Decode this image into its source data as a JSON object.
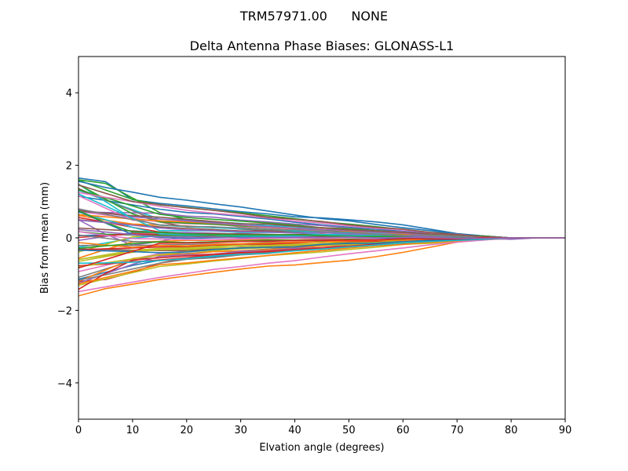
{
  "figure": {
    "suptitle": "TRM57971.00      NONE"
  },
  "chart_data": {
    "type": "line",
    "title": "Delta Antenna Phase Biases: GLONASS-L1",
    "xlabel": "Elvation angle (degrees)",
    "ylabel": "Bias from mean (mm)",
    "xlim": [
      0,
      90
    ],
    "ylim": [
      -5,
      5
    ],
    "xticks": [
      0,
      10,
      20,
      30,
      40,
      50,
      60,
      70,
      80,
      90
    ],
    "yticks": [
      -4,
      -2,
      0,
      2,
      4
    ],
    "xtick_labels": [
      "0",
      "10",
      "20",
      "30",
      "40",
      "50",
      "60",
      "70",
      "80",
      "90"
    ],
    "ytick_labels": [
      "−4",
      "−2",
      "0",
      "2",
      "4"
    ],
    "grid": false,
    "legend": "none",
    "x": [
      0,
      5,
      10,
      15,
      20,
      25,
      30,
      35,
      40,
      45,
      50,
      55,
      60,
      65,
      70,
      75,
      80,
      85,
      90
    ],
    "palette": [
      "#1f77b4",
      "#ff7f0e",
      "#2ca02c",
      "#d62728",
      "#9467bd",
      "#8c564b",
      "#e377c2",
      "#7f7f7f",
      "#bcbd22",
      "#17becf"
    ],
    "series_profiles": [
      {
        "values": [
          1.65,
          1.55,
          1.05,
          0.95,
          0.88,
          0.8,
          0.72,
          0.66,
          0.58,
          0.55,
          0.5,
          0.44,
          0.36,
          0.24,
          0.12,
          0.05,
          0.0,
          0.0,
          0.0
        ]
      },
      {
        "values": [
          -1.6,
          -1.4,
          -1.28,
          -1.15,
          -1.05,
          -0.95,
          -0.86,
          -0.78,
          -0.75,
          -0.68,
          -0.62,
          -0.52,
          -0.4,
          -0.26,
          -0.12,
          -0.05,
          -0.02,
          0.0,
          0.0
        ]
      },
      {
        "values": [
          1.6,
          1.5,
          1.1,
          0.7,
          0.5,
          0.4,
          0.3,
          0.26,
          0.2,
          0.18,
          0.15,
          0.13,
          0.1,
          0.07,
          0.04,
          0.02,
          0.0,
          0.0,
          0.0
        ]
      },
      {
        "values": [
          -1.2,
          -1.15,
          -0.95,
          -0.7,
          -0.55,
          -0.45,
          -0.4,
          -0.34,
          -0.28,
          -0.22,
          -0.16,
          -0.1,
          -0.05,
          -0.02,
          0.0,
          0.0,
          0.0,
          0.0,
          0.0
        ]
      },
      {
        "values": [
          0.5,
          0.1,
          -0.2,
          -0.1,
          0.05,
          0.1,
          0.12,
          0.1,
          0.08,
          0.06,
          0.04,
          0.03,
          0.02,
          0.01,
          0.0,
          -0.02,
          -0.04,
          0.0,
          0.0
        ]
      }
    ],
    "series_count": 60
  }
}
